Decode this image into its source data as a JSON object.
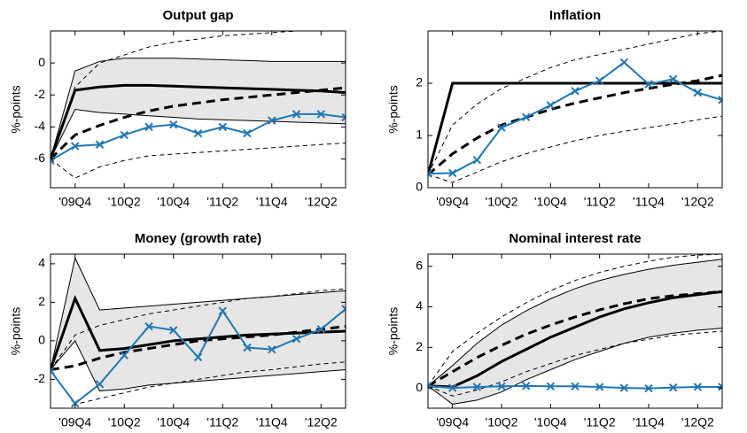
{
  "chart_data": [
    {
      "type": "line",
      "title": "Output gap",
      "ylabel": "%-points",
      "categories": [
        null,
        "'09Q4",
        null,
        "'10Q2",
        null,
        "'10Q4",
        null,
        "'11Q2",
        null,
        "'11Q4",
        null,
        "'12Q2",
        null
      ],
      "ylim": [
        -7.8,
        2
      ],
      "yticks": [
        -6,
        -4,
        -2,
        0
      ],
      "series": [
        {
          "style": "band",
          "color": "#e6e6e6",
          "lower": [
            -6,
            -2.9,
            -3.1,
            -3.2,
            -3.3,
            -3.4,
            -3.5,
            -3.55,
            -3.6,
            -3.65,
            -3.7,
            -3.75,
            -3.8
          ],
          "upper": [
            -6,
            -0.5,
            0.1,
            0.3,
            0.3,
            0.3,
            0.25,
            0.2,
            0.15,
            0.1,
            0.1,
            0.1,
            0.1
          ]
        },
        {
          "style": "line",
          "color": "#000000",
          "width": 1,
          "dash": true,
          "values": [
            -6,
            -1.5,
            0,
            0.5,
            1,
            1.3,
            1.5,
            1.7,
            1.8,
            1.9,
            2,
            2,
            2
          ]
        },
        {
          "style": "line",
          "color": "#000000",
          "width": 1,
          "dash": true,
          "values": [
            -6,
            -7.2,
            -6.5,
            -6.1,
            -5.8,
            -5.7,
            -5.6,
            -5.5,
            -5.4,
            -5.3,
            -5.2,
            -5.1,
            -5.0
          ]
        },
        {
          "style": "line",
          "color": "#000000",
          "width": 3,
          "dash": true,
          "values": [
            -6,
            -4.5,
            -3.9,
            -3.4,
            -3.0,
            -2.7,
            -2.5,
            -2.3,
            -2.15,
            -2.0,
            -1.85,
            -1.7,
            -1.55
          ]
        },
        {
          "style": "line",
          "color": "#000000",
          "width": 3,
          "dash": false,
          "values": [
            -6,
            -1.7,
            -1.5,
            -1.4,
            -1.4,
            -1.45,
            -1.5,
            -1.55,
            -1.6,
            -1.65,
            -1.7,
            -1.75,
            -1.85
          ]
        },
        {
          "style": "line",
          "color": "#1f77b4",
          "width": 2,
          "dash": false,
          "marker": "x",
          "values": [
            -6.1,
            -5.2,
            -5.1,
            -4.5,
            -4.0,
            -3.85,
            -4.4,
            -4.0,
            -4.4,
            -3.6,
            -3.2,
            -3.2,
            -3.4
          ]
        }
      ]
    },
    {
      "type": "line",
      "title": "Inflation",
      "ylabel": "%-points",
      "categories": [
        null,
        "'09Q4",
        null,
        "'10Q2",
        null,
        "'10Q4",
        null,
        "'11Q2",
        null,
        "'11Q4",
        null,
        "'12Q2",
        null
      ],
      "ylim": [
        0,
        3
      ],
      "yticks": [
        0,
        1,
        2
      ],
      "series": [
        {
          "style": "line",
          "color": "#000000",
          "width": 1,
          "dash": true,
          "values": [
            0.25,
            1.2,
            1.6,
            1.9,
            2.1,
            2.3,
            2.45,
            2.55,
            2.65,
            2.75,
            2.85,
            2.95,
            3.0
          ]
        },
        {
          "style": "line",
          "color": "#000000",
          "width": 1,
          "dash": true,
          "values": [
            0.25,
            0.1,
            0.3,
            0.5,
            0.65,
            0.78,
            0.9,
            1.0,
            1.08,
            1.15,
            1.22,
            1.3,
            1.37
          ]
        },
        {
          "style": "line",
          "color": "#000000",
          "width": 3,
          "dash": true,
          "values": [
            0.25,
            0.65,
            0.95,
            1.2,
            1.35,
            1.5,
            1.62,
            1.72,
            1.82,
            1.9,
            1.98,
            2.05,
            2.15
          ]
        },
        {
          "style": "line",
          "color": "#000000",
          "width": 3,
          "dash": false,
          "values": [
            0.25,
            2,
            2,
            2,
            2,
            2,
            2,
            2,
            2,
            2,
            2,
            2,
            2
          ]
        },
        {
          "style": "line",
          "color": "#1f77b4",
          "width": 2,
          "dash": false,
          "marker": "x",
          "values": [
            0.27,
            0.28,
            0.53,
            1.15,
            1.35,
            1.58,
            1.85,
            2.05,
            2.4,
            1.98,
            2.08,
            1.82,
            1.68
          ]
        }
      ]
    },
    {
      "type": "line",
      "title": "Money (growth rate)",
      "ylabel": "%-points",
      "categories": [
        null,
        "'09Q4",
        null,
        "'10Q2",
        null,
        "'10Q4",
        null,
        "'11Q2",
        null,
        "'11Q4",
        null,
        "'12Q2",
        null
      ],
      "ylim": [
        -3.5,
        4.5
      ],
      "yticks": [
        -2,
        0,
        2,
        4
      ],
      "series": [
        {
          "style": "band",
          "color": "#e6e6e6",
          "lower": [
            -1.5,
            0,
            -2.6,
            -2.5,
            -2.3,
            -2.2,
            -2.1,
            -2.0,
            -1.9,
            -1.8,
            -1.7,
            -1.6,
            -1.5
          ],
          "upper": [
            -1.5,
            4.3,
            1.6,
            1.7,
            1.8,
            1.9,
            2.0,
            2.1,
            2.2,
            2.3,
            2.4,
            2.5,
            2.6
          ]
        },
        {
          "style": "line",
          "color": "#000000",
          "width": 1,
          "dash": true,
          "values": [
            -1.5,
            0.3,
            0.8,
            1.1,
            1.4,
            1.6,
            1.8,
            2.0,
            2.2,
            2.3,
            2.45,
            2.6,
            2.7
          ]
        },
        {
          "style": "line",
          "color": "#000000",
          "width": 1,
          "dash": true,
          "values": [
            -1.5,
            -3.3,
            -3.0,
            -2.7,
            -2.4,
            -2.2,
            -2,
            -1.8,
            -1.6,
            -1.5,
            -1.35,
            -1.2,
            -1.1
          ]
        },
        {
          "style": "line",
          "color": "#000000",
          "width": 3,
          "dash": true,
          "values": [
            -1.5,
            -1.3,
            -0.9,
            -0.6,
            -0.4,
            -0.2,
            0,
            0.1,
            0.2,
            0.3,
            0.45,
            0.6,
            0.75
          ]
        },
        {
          "style": "line",
          "color": "#000000",
          "width": 3,
          "dash": false,
          "values": [
            -1.5,
            2.2,
            -0.5,
            -0.4,
            -0.2,
            0,
            0.1,
            0.2,
            0.3,
            0.35,
            0.4,
            0.45,
            0.5
          ]
        },
        {
          "style": "line",
          "color": "#1f77b4",
          "width": 2,
          "dash": false,
          "marker": "x",
          "values": [
            -1.55,
            -3.25,
            -2.25,
            -0.75,
            0.75,
            0.55,
            -0.85,
            1.55,
            -0.35,
            -0.45,
            0.1,
            0.6,
            1.65
          ]
        }
      ]
    },
    {
      "type": "line",
      "title": "Nominal interest rate",
      "ylabel": "%-points",
      "categories": [
        null,
        "'09Q4",
        null,
        "'10Q2",
        null,
        "'10Q4",
        null,
        "'11Q2",
        null,
        "'11Q4",
        null,
        "'12Q2",
        null
      ],
      "ylim": [
        -1,
        6.6
      ],
      "yticks": [
        0,
        2,
        4,
        6
      ],
      "series": [
        {
          "style": "band",
          "color": "#e6e6e6",
          "lower": [
            0.1,
            -0.8,
            -0.6,
            -0.2,
            0.4,
            0.9,
            1.4,
            1.8,
            2.2,
            2.5,
            2.7,
            2.85,
            2.95
          ],
          "upper": [
            0.1,
            1.1,
            2.2,
            3.1,
            3.8,
            4.4,
            4.9,
            5.3,
            5.6,
            5.85,
            6.05,
            6.2,
            6.35
          ]
        },
        {
          "style": "line",
          "color": "#000000",
          "width": 1,
          "dash": true,
          "values": [
            0.1,
            1.8,
            2.7,
            3.5,
            4.2,
            4.8,
            5.3,
            5.7,
            6.0,
            6.25,
            6.45,
            6.55,
            6.6
          ]
        },
        {
          "style": "line",
          "color": "#000000",
          "width": 1,
          "dash": true,
          "values": [
            0.1,
            -0.4,
            -0.1,
            0.3,
            0.8,
            1.2,
            1.6,
            1.9,
            2.2,
            2.4,
            2.6,
            2.7,
            2.8
          ]
        },
        {
          "style": "line",
          "color": "#000000",
          "width": 3,
          "dash": true,
          "values": [
            0.1,
            0.8,
            1.5,
            2.1,
            2.65,
            3.1,
            3.5,
            3.85,
            4.15,
            4.4,
            4.55,
            4.65,
            4.75
          ]
        },
        {
          "style": "line",
          "color": "#000000",
          "width": 3,
          "dash": false,
          "values": [
            0.1,
            0.05,
            0.6,
            1.3,
            1.9,
            2.5,
            3.0,
            3.5,
            3.9,
            4.2,
            4.45,
            4.6,
            4.75
          ]
        },
        {
          "style": "line",
          "color": "#1f77b4",
          "width": 2,
          "dash": false,
          "marker": "x",
          "values": [
            0.1,
            0.0,
            0.05,
            0.08,
            0.1,
            0.08,
            0.08,
            0.05,
            0.0,
            -0.02,
            0.02,
            0.05,
            0.05
          ]
        }
      ]
    }
  ]
}
